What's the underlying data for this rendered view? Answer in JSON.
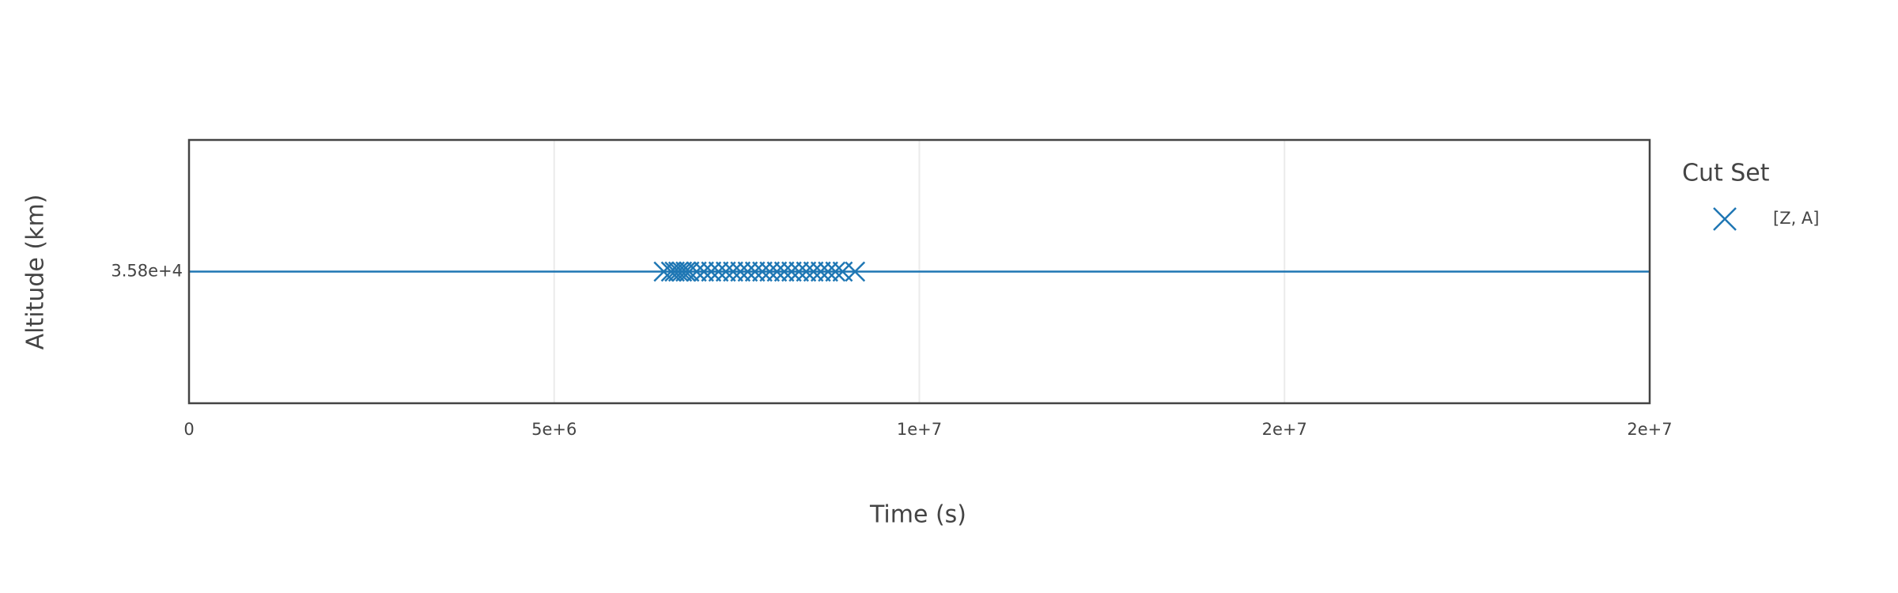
{
  "chart_data": {
    "type": "scatter",
    "x_label": "Time (s)",
    "y_label": "Altitude (km)",
    "legend_title": "Cut Set",
    "legend": "right",
    "xlim": [
      0,
      20000000
    ],
    "xticks": [
      0,
      {
        "value": 5000000,
        "label": "5e+6"
      },
      {
        "value": 10000000,
        "label": "1e+7"
      },
      {
        "value": 15000000,
        "label": "2e+7"
      },
      {
        "value": 20000000,
        "label": "2e+7"
      }
    ],
    "ylim": [
      35750,
      35850
    ],
    "yticks": [
      {
        "value": 35800,
        "label": "3.58e+4"
      }
    ],
    "grid": true,
    "reference_line": {
      "y": 35800,
      "color": "#1f77b4"
    },
    "series": [
      {
        "name": "[Z, A]",
        "color": "#1f77b4",
        "marker": "x",
        "x": [
          6500000,
          6600000,
          6650000,
          6700000,
          6750000,
          6800000,
          6850000,
          6950000,
          7050000,
          7150000,
          7250000,
          7350000,
          7450000,
          7550000,
          7650000,
          7750000,
          7850000,
          7950000,
          8050000,
          8150000,
          8250000,
          8350000,
          8450000,
          8550000,
          8650000,
          8750000,
          8850000,
          8950000,
          9120000
        ],
        "values": [
          35800,
          35800,
          35800,
          35800,
          35800,
          35800,
          35800,
          35800,
          35800,
          35800,
          35800,
          35800,
          35800,
          35800,
          35800,
          35800,
          35800,
          35800,
          35800,
          35800,
          35800,
          35800,
          35800,
          35800,
          35800,
          35800,
          35800,
          35800,
          35800
        ]
      }
    ]
  }
}
